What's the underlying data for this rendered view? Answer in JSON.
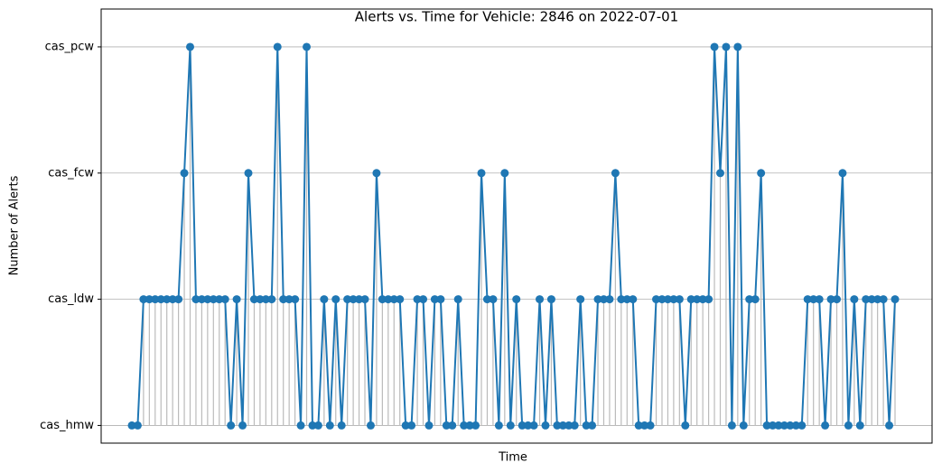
{
  "chart_data": {
    "type": "line",
    "title": "Alerts vs. Time for Vehicle: 2846 on 2022-07-01",
    "xlabel": "Time",
    "ylabel": "Number of Alerts",
    "color": "#1f77b4",
    "stem_color": "#bbbbbb",
    "grid": true,
    "ylim": [
      -0.14,
      3.3
    ],
    "yticks": [
      {
        "value": 0,
        "label": "cas_hmw"
      },
      {
        "value": 1,
        "label": "cas_ldw"
      },
      {
        "value": 2,
        "label": "cas_fcw"
      },
      {
        "value": 3,
        "label": "cas_pcw"
      }
    ],
    "values": [
      0,
      0,
      1,
      1,
      1,
      1,
      1,
      1,
      1,
      2,
      3,
      1,
      1,
      1,
      1,
      1,
      1,
      0,
      1,
      0,
      2,
      1,
      1,
      1,
      1,
      3,
      1,
      1,
      1,
      0,
      3,
      0,
      0,
      1,
      0,
      1,
      0,
      1,
      1,
      1,
      1,
      0,
      2,
      1,
      1,
      1,
      1,
      0,
      0,
      1,
      1,
      0,
      1,
      1,
      0,
      0,
      1,
      0,
      0,
      0,
      2,
      1,
      1,
      0,
      2,
      0,
      1,
      0,
      0,
      0,
      1,
      0,
      1,
      0,
      0,
      0,
      0,
      1,
      0,
      0,
      1,
      1,
      1,
      2,
      1,
      1,
      1,
      0,
      0,
      0,
      1,
      1,
      1,
      1,
      1,
      0,
      1,
      1,
      1,
      1,
      3,
      2,
      3,
      0,
      3,
      0,
      1,
      1,
      2,
      0,
      0,
      0,
      0,
      0,
      0,
      0,
      1,
      1,
      1,
      0,
      1,
      1,
      2,
      0,
      1,
      0,
      1,
      1,
      1,
      1,
      0,
      1
    ]
  }
}
